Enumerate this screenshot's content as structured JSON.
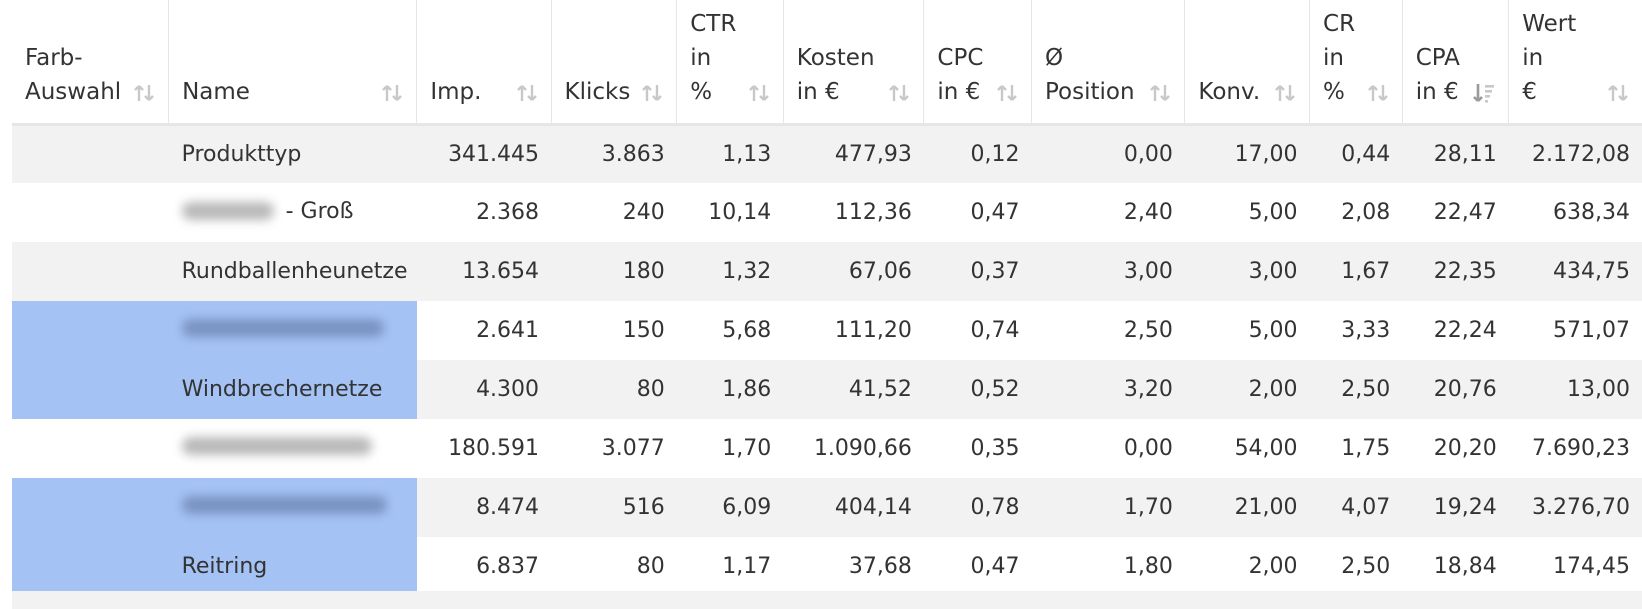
{
  "table": {
    "columns": [
      {
        "line1": "Farb-",
        "line2": "Auswahl",
        "line3": ""
      },
      {
        "line1": "",
        "line2": "Name",
        "line3": ""
      },
      {
        "line1": "",
        "line2": "Imp.",
        "line3": ""
      },
      {
        "line1": "",
        "line2": "Klicks",
        "line3": ""
      },
      {
        "line1": "CTR",
        "line2": "in",
        "line3": "%"
      },
      {
        "line1": "Kosten",
        "line2": "in €",
        "line3": ""
      },
      {
        "line1": "CPC",
        "line2": "in €",
        "line3": ""
      },
      {
        "line1": "Ø",
        "line2": "Position",
        "line3": ""
      },
      {
        "line1": "",
        "line2": "Konv.",
        "line3": ""
      },
      {
        "line1": "CR",
        "line2": "in",
        "line3": "%"
      },
      {
        "line1": "CPA",
        "line2": "in €",
        "line3": ""
      },
      {
        "line1": "Wert in",
        "line2": "€",
        "line3": ""
      }
    ],
    "sorted_column": "CPA in €",
    "highlight_color": "#a4c2f4",
    "rows": [
      {
        "name": "Produkttyp",
        "name_blurred": false,
        "name_suffix": "",
        "highlighted": false,
        "imp": "341.445",
        "klicks": "3.863",
        "ctr": "1,13",
        "kosten": "477,93",
        "cpc": "0,12",
        "position": "0,00",
        "konv": "17,00",
        "cr": "0,44",
        "cpa": "28,11",
        "wert": "2.172,08"
      },
      {
        "name": "",
        "name_blurred": true,
        "name_suffix": "- Groß",
        "highlighted": false,
        "imp": "2.368",
        "klicks": "240",
        "ctr": "10,14",
        "kosten": "112,36",
        "cpc": "0,47",
        "position": "2,40",
        "konv": "5,00",
        "cr": "2,08",
        "cpa": "22,47",
        "wert": "638,34"
      },
      {
        "name": "Rundballenheunetze",
        "name_blurred": false,
        "name_suffix": "",
        "highlighted": false,
        "imp": "13.654",
        "klicks": "180",
        "ctr": "1,32",
        "kosten": "67,06",
        "cpc": "0,37",
        "position": "3,00",
        "konv": "3,00",
        "cr": "1,67",
        "cpa": "22,35",
        "wert": "434,75"
      },
      {
        "name": "",
        "name_blurred": true,
        "name_suffix": "",
        "highlighted": true,
        "imp": "2.641",
        "klicks": "150",
        "ctr": "5,68",
        "kosten": "111,20",
        "cpc": "0,74",
        "position": "2,50",
        "konv": "5,00",
        "cr": "3,33",
        "cpa": "22,24",
        "wert": "571,07"
      },
      {
        "name": "Windbrechernetze",
        "name_blurred": false,
        "name_suffix": "",
        "highlighted": true,
        "imp": "4.300",
        "klicks": "80",
        "ctr": "1,86",
        "kosten": "41,52",
        "cpc": "0,52",
        "position": "3,20",
        "konv": "2,00",
        "cr": "2,50",
        "cpa": "20,76",
        "wert": "13,00"
      },
      {
        "name": "",
        "name_blurred": true,
        "name_suffix": "",
        "highlighted": false,
        "imp": "180.591",
        "klicks": "3.077",
        "ctr": "1,70",
        "kosten": "1.090,66",
        "cpc": "0,35",
        "position": "0,00",
        "konv": "54,00",
        "cr": "1,75",
        "cpa": "20,20",
        "wert": "7.690,23"
      },
      {
        "name": "",
        "name_blurred": true,
        "name_suffix": "",
        "highlighted": true,
        "imp": "8.474",
        "klicks": "516",
        "ctr": "6,09",
        "kosten": "404,14",
        "cpc": "0,78",
        "position": "1,70",
        "konv": "21,00",
        "cr": "4,07",
        "cpa": "19,24",
        "wert": "3.276,70"
      },
      {
        "name": "Reitring",
        "name_blurred": false,
        "name_suffix": "",
        "highlighted": true,
        "imp": "6.837",
        "klicks": "80",
        "ctr": "1,17",
        "kosten": "37,68",
        "cpc": "0,47",
        "position": "1,80",
        "konv": "2,00",
        "cr": "2,50",
        "cpa": "18,84",
        "wert": "174,45"
      }
    ]
  }
}
